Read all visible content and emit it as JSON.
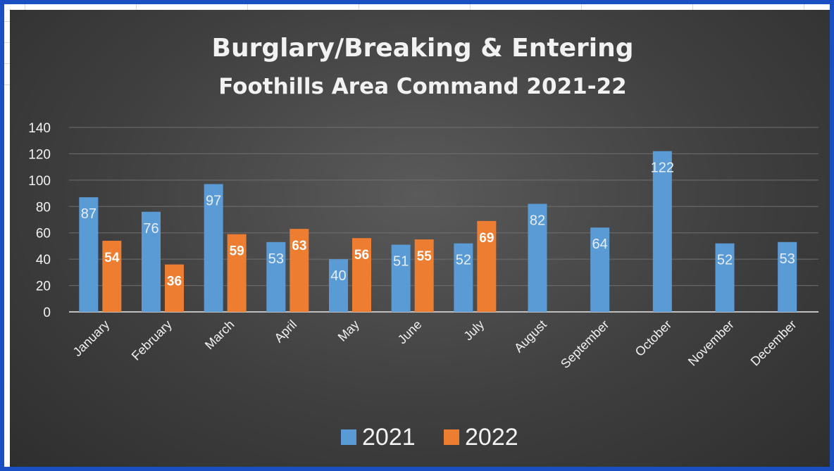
{
  "chart_data": {
    "type": "bar",
    "title": "Burglary/Breaking & Entering",
    "subtitle": "Foothills Area Command 2021-22",
    "categories": [
      "January",
      "February",
      "March",
      "April",
      "May",
      "June",
      "July",
      "August",
      "September",
      "October",
      "November",
      "December"
    ],
    "series": [
      {
        "name": "2021",
        "color": "#5b9bd5",
        "values": [
          87,
          76,
          97,
          53,
          40,
          51,
          52,
          82,
          64,
          122,
          52,
          53
        ]
      },
      {
        "name": "2022",
        "color": "#ed7d31",
        "values": [
          54,
          36,
          59,
          63,
          56,
          55,
          69,
          null,
          null,
          null,
          null,
          null
        ]
      }
    ],
    "ylim": [
      0,
      140
    ],
    "yticks": [
      0,
      20,
      40,
      60,
      80,
      100,
      120,
      140
    ],
    "grid": true,
    "legend": "bottom"
  }
}
